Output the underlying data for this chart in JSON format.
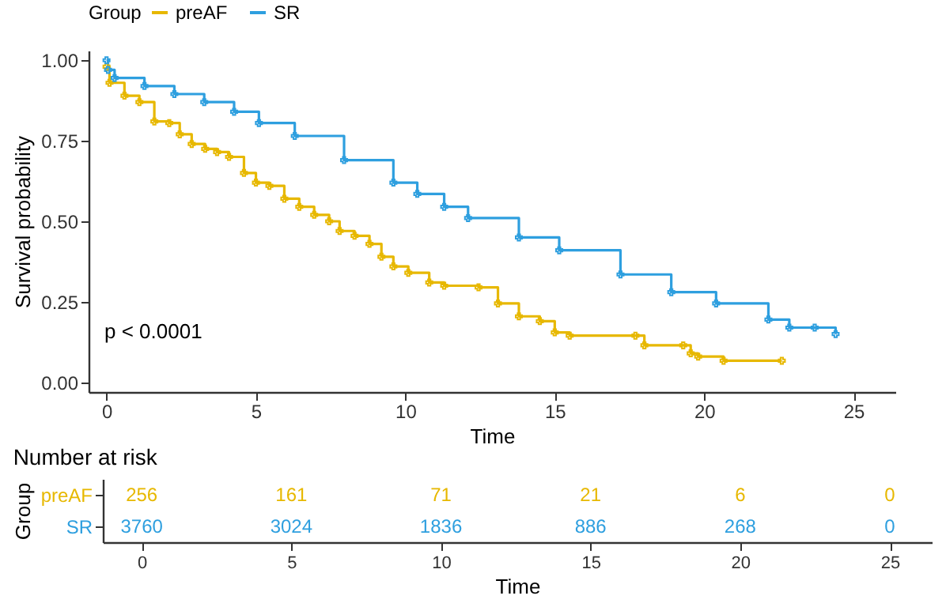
{
  "chart_data": [
    {
      "type": "step",
      "xlabel": "Time",
      "ylabel": "Survival probability",
      "legend_title": "Group",
      "legend": "top",
      "marker": "cross",
      "grid": false,
      "xlim": [
        -0.6,
        26.4
      ],
      "xticks": [
        0,
        5,
        10,
        15,
        20,
        25
      ],
      "ylim": [
        -0.03,
        1.03
      ],
      "yticks": [
        {
          "value": 0,
          "label": "0.00"
        },
        {
          "value": 0.25,
          "label": "0.25"
        },
        {
          "value": 0.5,
          "label": "0.50"
        },
        {
          "value": 0.75,
          "label": "0.75"
        },
        {
          "value": 1,
          "label": "1.00"
        }
      ],
      "annotations": [
        "p < 0.0001"
      ],
      "series": [
        {
          "name": "preAF",
          "color": "#e7b800",
          "x": [
            0,
            0.1,
            0.6,
            1.1,
            1.6,
            2.1,
            2.45,
            2.85,
            3.3,
            3.7,
            4.1,
            4.6,
            5.0,
            5.45,
            5.95,
            6.45,
            6.95,
            7.45,
            7.8,
            8.3,
            8.8,
            9.2,
            9.6,
            10.1,
            10.8,
            11.3,
            12.45,
            13.1,
            13.8,
            14.5,
            15.0,
            15.5,
            17.7,
            18.0,
            19.3,
            19.55,
            19.8,
            20.65,
            22.6
          ],
          "values": [
            0.98,
            0.93,
            0.89,
            0.87,
            0.81,
            0.805,
            0.77,
            0.74,
            0.725,
            0.715,
            0.7,
            0.65,
            0.62,
            0.61,
            0.57,
            0.545,
            0.52,
            0.5,
            0.47,
            0.455,
            0.43,
            0.39,
            0.36,
            0.34,
            0.31,
            0.3,
            0.295,
            0.245,
            0.205,
            0.19,
            0.155,
            0.145,
            0.145,
            0.115,
            0.115,
            0.09,
            0.08,
            0.067,
            0.067
          ]
        },
        {
          "name": "SR",
          "color": "#2e9fdf",
          "x": [
            0,
            0.05,
            0.27,
            1.27,
            2.27,
            3.27,
            4.27,
            5.1,
            6.3,
            7.95,
            9.6,
            10.4,
            11.3,
            12.1,
            13.8,
            15.15,
            17.2,
            18.9,
            20.4,
            22.15,
            22.85,
            23.7,
            24.4
          ],
          "values": [
            1.0,
            0.97,
            0.945,
            0.92,
            0.895,
            0.87,
            0.84,
            0.805,
            0.765,
            0.69,
            0.62,
            0.585,
            0.545,
            0.51,
            0.45,
            0.41,
            0.335,
            0.28,
            0.245,
            0.195,
            0.17,
            0.17,
            0.15
          ]
        }
      ]
    },
    {
      "type": "heatmap",
      "title": "Number at risk",
      "xlabel": "Time",
      "ylabel": "Group",
      "data_labels": true,
      "x": [
        0,
        5,
        10,
        15,
        20,
        25
      ],
      "xlim": [
        -1.3,
        26.4
      ],
      "xticks": [
        0,
        5,
        10,
        15,
        20,
        25
      ],
      "y_categories": [
        "preAF",
        "SR"
      ],
      "colors": [
        "#e7b800",
        "#2e9fdf"
      ],
      "cells": [
        [
          256,
          161,
          71,
          21,
          6,
          0
        ],
        [
          3760,
          3024,
          1836,
          886,
          268,
          0
        ]
      ]
    }
  ]
}
